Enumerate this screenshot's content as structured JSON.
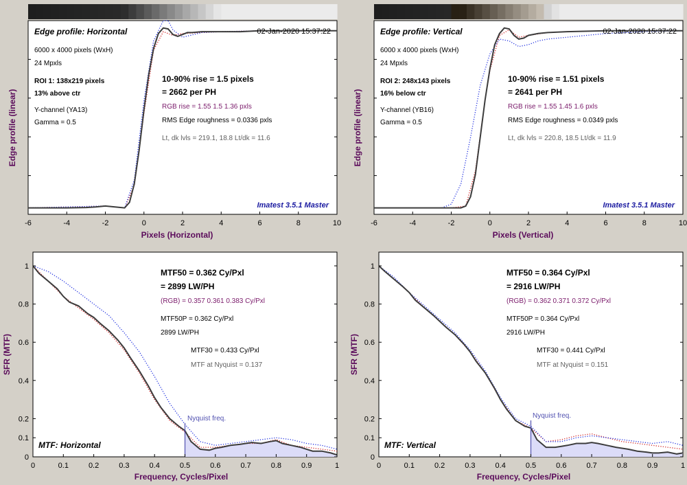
{
  "colors": {
    "background": "#d4d0c8",
    "plot_bg": "#ffffff",
    "axis_label": "#5a0a5a",
    "main_curve": "#3c3c3c",
    "red_channel": "#d02020",
    "blue_channel": "#2030e0",
    "rgb_text": "#7a1a6a",
    "imatest_text": "#1a1aa0",
    "nyquist": "#5050b0",
    "fill": "#dcdcf8"
  },
  "edge_panels": [
    {
      "title": "Edge profile: Horizontal",
      "timestamp": "02-Jan-2020 15:37:22",
      "info": [
        "6000 x 4000 pixels (WxH)",
        "24 Mpxls"
      ],
      "roi": [
        "ROI 1:  138x219 pixels",
        "13% above ctr"
      ],
      "channel": [
        "Y-channel  (YA13)",
        "Gamma = 0.5"
      ],
      "rise_line1": "10-90% rise = 1.5 pixels",
      "rise_line2": "= 2662 per PH",
      "rgb_rise": "RGB rise = 1.55  1.5  1.36 pxls",
      "rms": "RMS Edge roughness = 0.0336 pxls",
      "levels": "Lt, dk lvls = 219.1, 18.8   Lt/dk = 11.6",
      "watermark": "Imatest 3.5.1 Master",
      "ylabel": "Edge profile (linear)",
      "xlabel": "Pixels (Horizontal)",
      "xticks": [
        "-6",
        "-4",
        "-2",
        "0",
        "2",
        "4",
        "6",
        "8",
        "10"
      ]
    },
    {
      "title": "Edge profile: Vertical",
      "timestamp": "02-Jan-2020 15:37:22",
      "info": [
        "6000 x 4000 pixels (WxH)",
        "24 Mpxls"
      ],
      "roi": [
        "ROI 2:  248x143 pixels",
        "16% below ctr"
      ],
      "channel": [
        "Y-channel  (YB16)",
        "Gamma = 0.5"
      ],
      "rise_line1": "10-90% rise = 1.51 pixels",
      "rise_line2": "= 2641 per PH",
      "rgb_rise": "RGB rise = 1.55  1.45  1.6 pxls",
      "rms": "RMS Edge roughness = 0.0349 pxls",
      "levels": "Lt, dk lvls = 220.8, 18.5   Lt/dk = 11.9",
      "watermark": "Imatest 3.5.1 Master",
      "ylabel": "Edge profile (linear)",
      "xlabel": "Pixels (Vertical)",
      "xticks": [
        "-6",
        "-4",
        "-2",
        "0",
        "2",
        "4",
        "6",
        "8",
        "10"
      ]
    }
  ],
  "mtf_panels": [
    {
      "mtf50_line1": "MTF50 = 0.362 Cy/Pxl",
      "mtf50_line2": "= 2899 LW/PH",
      "rgb": "(RGB) = 0.357  0.361  0.383 Cy/Pxl",
      "mtf50p_line1": "MTF50P = 0.362 Cy/Pxl",
      "mtf50p_line2": "2899 LW/PH",
      "mtf30": "MTF30 = 0.433 Cy/Pxl",
      "nyq_text": "MTF at Nyquist = 0.137",
      "nyquist_label": "Nyquist freq.",
      "title": "MTF: Horizontal",
      "ylabel": "SFR (MTF)",
      "xlabel": "Frequency, Cycles/Pixel",
      "xticks": [
        "0",
        "0.1",
        "0.2",
        "0.3",
        "0.4",
        "0.5",
        "0.6",
        "0.7",
        "0.8",
        "0.9",
        "1"
      ],
      "yticks": [
        "0",
        "0.1",
        "0.2",
        "0.4",
        "0.6",
        "0.8",
        "1"
      ]
    },
    {
      "mtf50_line1": "MTF50 = 0.364 Cy/Pxl",
      "mtf50_line2": "= 2916 LW/PH",
      "rgb": "(RGB) = 0.362  0.371  0.372 Cy/Pxl",
      "mtf50p_line1": "MTF50P = 0.364 Cy/Pxl",
      "mtf50p_line2": "2916 LW/PH",
      "mtf30": "MTF30 = 0.441 Cy/Pxl",
      "nyq_text": "MTF at Nyquist = 0.151",
      "nyquist_label": "Nyquist freq.",
      "title": "MTF: Vertical",
      "ylabel": "SFR (MTF)",
      "xlabel": "Frequency, Cycles/Pixel",
      "xticks": [
        "0",
        "0.1",
        "0.2",
        "0.3",
        "0.4",
        "0.5",
        "0.6",
        "0.7",
        "0.8",
        "0.9",
        "1"
      ],
      "yticks": [
        "0",
        "0.1",
        "0.2",
        "0.4",
        "0.6",
        "0.8",
        "1"
      ]
    }
  ],
  "chart_data": [
    {
      "type": "line",
      "title": "Edge profile: Horizontal",
      "xlabel": "Pixels (Horizontal)",
      "ylabel": "Edge profile (linear)",
      "xlim": [
        -6,
        10
      ],
      "ylim": [
        0,
        1
      ],
      "series": [
        {
          "name": "Y",
          "style": "solid",
          "x": [
            -6,
            -4,
            -3,
            -2.5,
            -2,
            -1.5,
            -1,
            -0.75,
            -0.5,
            -0.25,
            0,
            0.25,
            0.5,
            0.75,
            1,
            1.25,
            1.5,
            1.75,
            2,
            2.25,
            2.5,
            3,
            4,
            5,
            6,
            7,
            8,
            9,
            10
          ],
          "y": [
            0.02,
            0.02,
            0.022,
            0.025,
            0.03,
            0.025,
            0.02,
            0.05,
            0.15,
            0.33,
            0.55,
            0.74,
            0.88,
            0.96,
            0.99,
            0.985,
            0.955,
            0.945,
            0.955,
            0.965,
            0.965,
            0.97,
            0.97,
            0.97,
            0.975,
            0.975,
            0.975,
            0.975,
            0.975
          ]
        },
        {
          "name": "R",
          "style": "dotted",
          "x": [
            -6,
            -2,
            -1,
            -0.5,
            0,
            0.5,
            1,
            1.5,
            2,
            3,
            4,
            6,
            8,
            10
          ],
          "y": [
            0.02,
            0.03,
            0.02,
            0.14,
            0.53,
            0.87,
            0.97,
            0.95,
            0.96,
            0.965,
            0.97,
            0.975,
            0.975,
            0.975
          ]
        },
        {
          "name": "B",
          "style": "dotted",
          "x": [
            -6,
            -2,
            -1,
            -0.5,
            0,
            0.5,
            1,
            1.25,
            1.5,
            2,
            3,
            4,
            6,
            8,
            10
          ],
          "y": [
            0.02,
            0.03,
            0.02,
            0.17,
            0.6,
            0.92,
            1.03,
            1.03,
            0.98,
            0.94,
            0.965,
            0.97,
            0.975,
            0.975,
            0.975
          ]
        }
      ]
    },
    {
      "type": "line",
      "title": "Edge profile: Vertical",
      "xlabel": "Pixels (Vertical)",
      "ylabel": "Edge profile (linear)",
      "xlim": [
        -6,
        10
      ],
      "ylim": [
        0,
        1
      ],
      "series": [
        {
          "name": "Y",
          "style": "solid",
          "x": [
            -6,
            -3,
            -2,
            -1.5,
            -1.25,
            -1,
            -0.75,
            -0.5,
            -0.25,
            0,
            0.25,
            0.5,
            0.75,
            1,
            1.25,
            1.5,
            1.75,
            2,
            2.5,
            3,
            4,
            6,
            8,
            10
          ],
          "y": [
            0.02,
            0.02,
            0.02,
            0.02,
            0.03,
            0.08,
            0.2,
            0.4,
            0.6,
            0.77,
            0.9,
            0.96,
            0.99,
            0.985,
            0.95,
            0.93,
            0.935,
            0.95,
            0.96,
            0.965,
            0.97,
            0.975,
            0.975,
            0.975
          ]
        },
        {
          "name": "R",
          "style": "dotted",
          "x": [
            -6,
            -2,
            -1.25,
            -0.75,
            -0.25,
            0,
            0.5,
            1,
            1.5,
            2,
            3,
            4,
            6,
            8,
            10
          ],
          "y": [
            0.02,
            0.02,
            0.03,
            0.22,
            0.6,
            0.76,
            0.95,
            0.98,
            0.94,
            0.95,
            0.965,
            0.97,
            0.975,
            0.975,
            0.975
          ]
        },
        {
          "name": "B",
          "style": "dotted",
          "x": [
            -6,
            -2.5,
            -2,
            -1.5,
            -1,
            -0.5,
            0,
            0.5,
            1,
            1.5,
            2,
            2.5,
            3,
            4,
            5,
            6,
            8,
            10
          ],
          "y": [
            0.02,
            0.02,
            0.04,
            0.15,
            0.4,
            0.68,
            0.85,
            0.93,
            0.92,
            0.89,
            0.9,
            0.92,
            0.93,
            0.94,
            0.95,
            0.96,
            0.97,
            0.975
          ]
        }
      ]
    },
    {
      "type": "line",
      "title": "MTF: Horizontal",
      "xlabel": "Frequency, Cycles/Pixel",
      "ylabel": "SFR (MTF)",
      "xlim": [
        0,
        1
      ],
      "ylim": [
        0,
        1
      ],
      "nyquist": 0.5,
      "series": [
        {
          "name": "Y",
          "style": "solid",
          "x": [
            0,
            0.02,
            0.05,
            0.08,
            0.1,
            0.12,
            0.15,
            0.18,
            0.2,
            0.22,
            0.25,
            0.28,
            0.3,
            0.32,
            0.35,
            0.38,
            0.4,
            0.42,
            0.45,
            0.48,
            0.5,
            0.52,
            0.55,
            0.58,
            0.6,
            0.62,
            0.65,
            0.68,
            0.7,
            0.72,
            0.75,
            0.78,
            0.8,
            0.82,
            0.85,
            0.88,
            0.9,
            0.92,
            0.95,
            0.98,
            1
          ],
          "y": [
            1,
            0.96,
            0.92,
            0.88,
            0.84,
            0.81,
            0.79,
            0.75,
            0.73,
            0.7,
            0.66,
            0.61,
            0.57,
            0.52,
            0.45,
            0.37,
            0.31,
            0.26,
            0.2,
            0.16,
            0.137,
            0.08,
            0.04,
            0.035,
            0.045,
            0.05,
            0.06,
            0.065,
            0.07,
            0.075,
            0.07,
            0.08,
            0.085,
            0.07,
            0.06,
            0.05,
            0.04,
            0.03,
            0.03,
            0.02,
            0.01
          ]
        },
        {
          "name": "R",
          "style": "dotted",
          "x": [
            0,
            0.05,
            0.1,
            0.15,
            0.2,
            0.25,
            0.3,
            0.35,
            0.4,
            0.45,
            0.5,
            0.55,
            0.6,
            0.65,
            0.7,
            0.75,
            0.8,
            0.85,
            0.9,
            0.95,
            1
          ],
          "y": [
            1,
            0.92,
            0.84,
            0.78,
            0.72,
            0.65,
            0.56,
            0.44,
            0.3,
            0.19,
            0.13,
            0.05,
            0.05,
            0.06,
            0.07,
            0.07,
            0.09,
            0.06,
            0.05,
            0.04,
            0.03
          ]
        },
        {
          "name": "B",
          "style": "dotted",
          "x": [
            0,
            0.05,
            0.1,
            0.15,
            0.2,
            0.25,
            0.3,
            0.35,
            0.4,
            0.45,
            0.5,
            0.55,
            0.6,
            0.65,
            0.7,
            0.75,
            0.8,
            0.85,
            0.9,
            0.95,
            1
          ],
          "y": [
            1,
            0.97,
            0.92,
            0.86,
            0.8,
            0.74,
            0.65,
            0.55,
            0.42,
            0.28,
            0.17,
            0.08,
            0.06,
            0.07,
            0.08,
            0.09,
            0.1,
            0.09,
            0.07,
            0.06,
            0.04
          ]
        }
      ]
    },
    {
      "type": "line",
      "title": "MTF: Vertical",
      "xlabel": "Frequency, Cycles/Pixel",
      "ylabel": "SFR (MTF)",
      "xlim": [
        0,
        1
      ],
      "ylim": [
        0,
        1
      ],
      "nyquist": 0.5,
      "series": [
        {
          "name": "Y",
          "style": "solid",
          "x": [
            0,
            0.02,
            0.05,
            0.08,
            0.1,
            0.12,
            0.15,
            0.18,
            0.2,
            0.22,
            0.25,
            0.28,
            0.3,
            0.32,
            0.35,
            0.38,
            0.4,
            0.42,
            0.45,
            0.48,
            0.5,
            0.52,
            0.55,
            0.58,
            0.6,
            0.62,
            0.65,
            0.68,
            0.7,
            0.72,
            0.75,
            0.78,
            0.8,
            0.82,
            0.85,
            0.88,
            0.9,
            0.92,
            0.95,
            0.98,
            1
          ],
          "y": [
            1,
            0.97,
            0.93,
            0.89,
            0.86,
            0.82,
            0.78,
            0.74,
            0.71,
            0.68,
            0.64,
            0.59,
            0.55,
            0.5,
            0.44,
            0.36,
            0.3,
            0.25,
            0.19,
            0.16,
            0.151,
            0.09,
            0.05,
            0.05,
            0.055,
            0.06,
            0.07,
            0.07,
            0.075,
            0.07,
            0.06,
            0.05,
            0.045,
            0.04,
            0.03,
            0.025,
            0.02,
            0.02,
            0.025,
            0.015,
            0.02
          ]
        },
        {
          "name": "R",
          "style": "dotted",
          "x": [
            0,
            0.05,
            0.1,
            0.15,
            0.2,
            0.25,
            0.3,
            0.35,
            0.4,
            0.45,
            0.5,
            0.55,
            0.6,
            0.65,
            0.7,
            0.75,
            0.8,
            0.85,
            0.9,
            0.95,
            1
          ],
          "y": [
            1,
            0.93,
            0.86,
            0.78,
            0.71,
            0.64,
            0.55,
            0.44,
            0.3,
            0.19,
            0.15,
            0.08,
            0.09,
            0.11,
            0.12,
            0.1,
            0.08,
            0.07,
            0.06,
            0.05,
            0.04
          ]
        },
        {
          "name": "B",
          "style": "dotted",
          "x": [
            0,
            0.05,
            0.1,
            0.15,
            0.2,
            0.25,
            0.3,
            0.35,
            0.4,
            0.45,
            0.5,
            0.55,
            0.6,
            0.65,
            0.7,
            0.75,
            0.8,
            0.85,
            0.9,
            0.95,
            1
          ],
          "y": [
            1,
            0.94,
            0.86,
            0.79,
            0.72,
            0.65,
            0.56,
            0.45,
            0.31,
            0.2,
            0.16,
            0.08,
            0.08,
            0.1,
            0.11,
            0.1,
            0.09,
            0.08,
            0.07,
            0.08,
            0.06
          ]
        }
      ]
    }
  ]
}
